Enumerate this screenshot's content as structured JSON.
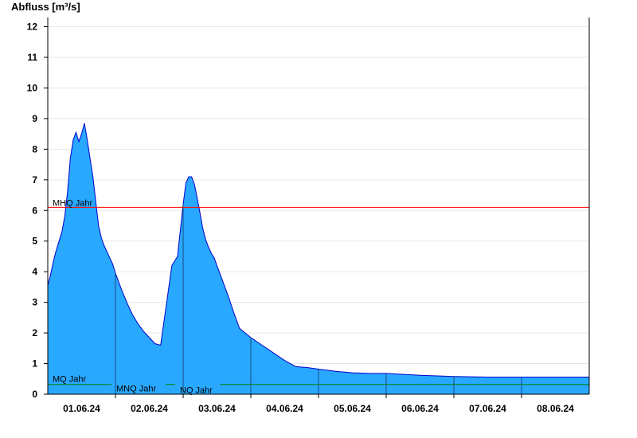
{
  "chart_data": {
    "type": "area",
    "ylabel": "Abfluss [m³/s]",
    "xlabel": "",
    "title": "",
    "ylim": [
      0,
      12.3
    ],
    "yticks": [
      0,
      1,
      2,
      3,
      4,
      5,
      6,
      7,
      8,
      9,
      10,
      11,
      12
    ],
    "xlim": [
      "01.06.24 00:00",
      "09.06.24 00:00"
    ],
    "xtick_labels": [
      "01.06.24",
      "02.06.24",
      "03.06.24",
      "04.06.24",
      "05.06.24",
      "06.06.24",
      "07.06.24",
      "08.06.24"
    ],
    "grid": true,
    "colors": {
      "area": "#29a8ff",
      "line": "#0000cc",
      "mhq": "#ff0000",
      "mq": "#008000",
      "grid": "#e6e6e6"
    },
    "series": [
      {
        "x": [
          "01.06.24 00:00",
          "01.06.24 01:00",
          "01.06.24 02:00",
          "01.06.24 03:00",
          "01.06.24 04:00",
          "01.06.24 05:00",
          "01.06.24 06:00",
          "01.06.24 07:00",
          "01.06.24 08:00",
          "01.06.24 09:00",
          "01.06.24 10:00",
          "01.06.24 11:00",
          "01.06.24 12:00",
          "01.06.24 13:00",
          "01.06.24 14:00",
          "01.06.24 15:00",
          "01.06.24 16:00",
          "01.06.24 17:00",
          "01.06.24 18:00",
          "01.06.24 19:00",
          "01.06.24 20:00",
          "01.06.24 21:00",
          "01.06.24 22:00",
          "01.06.24 23:00",
          "02.06.24 00:00",
          "02.06.24 02:00",
          "02.06.24 04:00",
          "02.06.24 06:00",
          "02.06.24 08:00",
          "02.06.24 10:00",
          "02.06.24 12:00",
          "02.06.24 14:00",
          "02.06.24 16:00",
          "02.06.24 18:00",
          "02.06.24 20:00",
          "02.06.24 22:00",
          "03.06.24 00:00",
          "03.06.24 01:00",
          "03.06.24 02:00",
          "03.06.24 03:00",
          "03.06.24 04:00",
          "03.06.24 05:00",
          "03.06.24 06:00",
          "03.06.24 07:00",
          "03.06.24 08:00",
          "03.06.24 09:00",
          "03.06.24 10:00",
          "03.06.24 11:00",
          "03.06.24 12:00",
          "03.06.24 13:00",
          "03.06.24 14:00",
          "03.06.24 15:00",
          "03.06.24 16:00",
          "03.06.24 18:00",
          "03.06.24 20:00",
          "03.06.24 22:00",
          "04.06.24 00:00",
          "04.06.24 04:00",
          "04.06.24 08:00",
          "04.06.24 12:00",
          "04.06.24 16:00",
          "04.06.24 20:00",
          "05.06.24 00:00",
          "05.06.24 06:00",
          "05.06.24 12:00",
          "05.06.24 18:00",
          "06.06.24 00:00",
          "06.06.24 12:00",
          "07.06.24 00:00",
          "07.06.24 12:00",
          "08.06.24 00:00",
          "08.06.24 12:00",
          "09.06.24 00:00"
        ],
        "y": [
          3.55,
          3.9,
          4.35,
          4.7,
          5.0,
          5.3,
          5.8,
          6.6,
          7.7,
          8.3,
          8.55,
          8.25,
          8.5,
          8.85,
          8.3,
          7.7,
          7.1,
          6.3,
          5.5,
          5.1,
          4.85,
          4.65,
          4.45,
          4.25,
          3.95,
          3.45,
          3.0,
          2.6,
          2.3,
          2.05,
          1.85,
          1.65,
          1.6,
          2.9,
          4.2,
          4.5,
          6.2,
          6.9,
          7.1,
          7.1,
          6.85,
          6.4,
          5.9,
          5.4,
          5.05,
          4.8,
          4.6,
          4.45,
          4.2,
          3.95,
          3.7,
          3.45,
          3.2,
          2.65,
          2.15,
          2.0,
          1.85,
          1.6,
          1.35,
          1.1,
          0.9,
          0.87,
          0.82,
          0.75,
          0.7,
          0.68,
          0.68,
          0.62,
          0.58,
          0.56,
          0.56,
          0.56,
          0.56
        ]
      }
    ],
    "reference_lines": [
      {
        "label": "MHQ Jahr",
        "value": 6.1,
        "color": "#ff0000"
      },
      {
        "label": "MQ Jahr",
        "value": 0.32,
        "color": "#008000"
      },
      {
        "label": "MNQ Jahr",
        "value": 0.32,
        "color": "#008000"
      },
      {
        "label": "NQ Jahr",
        "value": 0.32,
        "color": "#008000"
      }
    ]
  }
}
